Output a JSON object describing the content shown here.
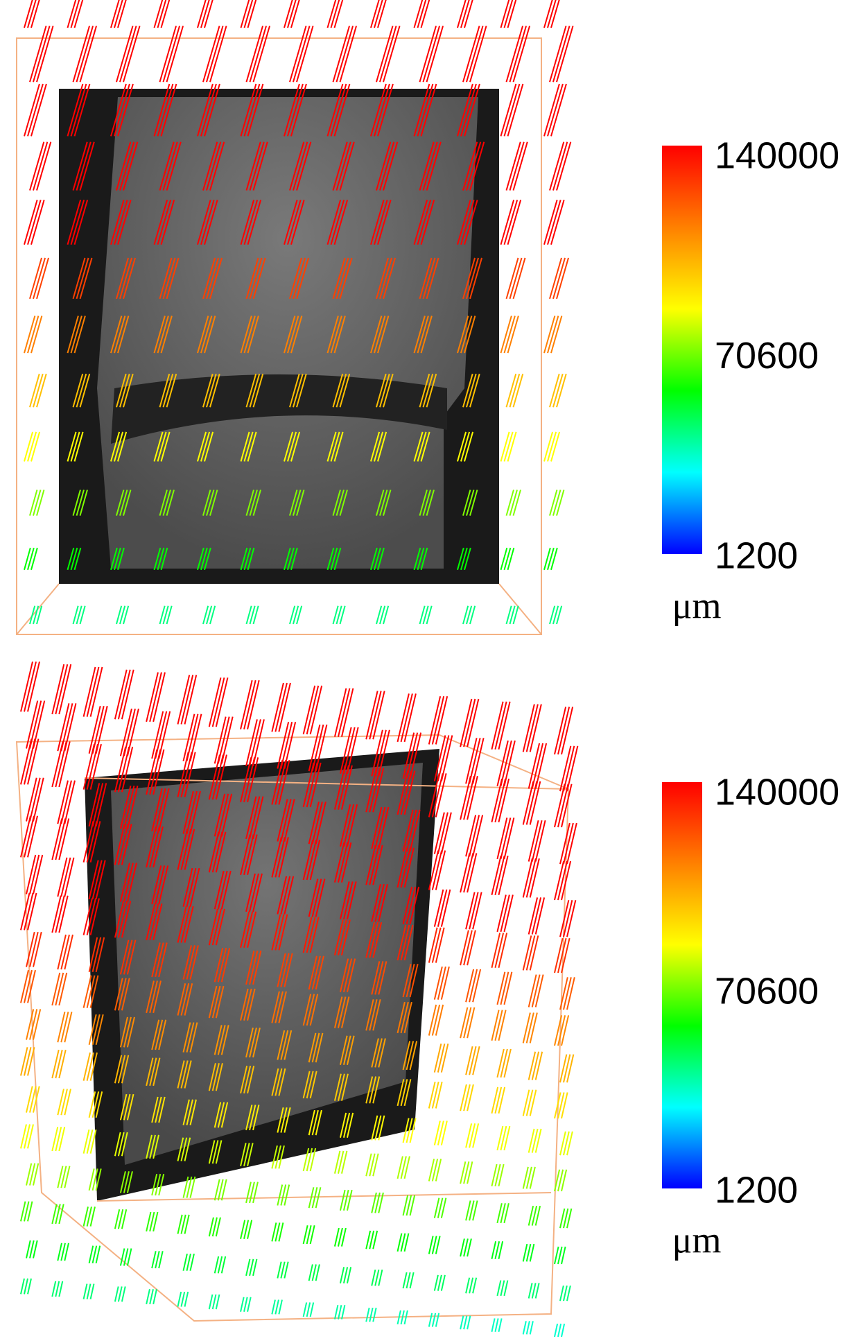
{
  "chart_data": [
    {
      "type": "colorbar",
      "zlim": [
        1200,
        140000
      ],
      "zticks": [
        140000,
        70600,
        1200
      ],
      "unit": "μm",
      "colormap": [
        "#0000ff",
        "#00ffff",
        "#00ff00",
        "#ffff00",
        "#ff8000",
        "#ff0000"
      ]
    },
    {
      "type": "colorbar",
      "zlim": [
        1200,
        140000
      ],
      "zticks": [
        140000,
        70600,
        1200
      ],
      "unit": "μm",
      "colormap": [
        "#0000ff",
        "#00ffff",
        "#00ff00",
        "#ffff00",
        "#ff8000",
        "#ff0000"
      ]
    }
  ]
}
